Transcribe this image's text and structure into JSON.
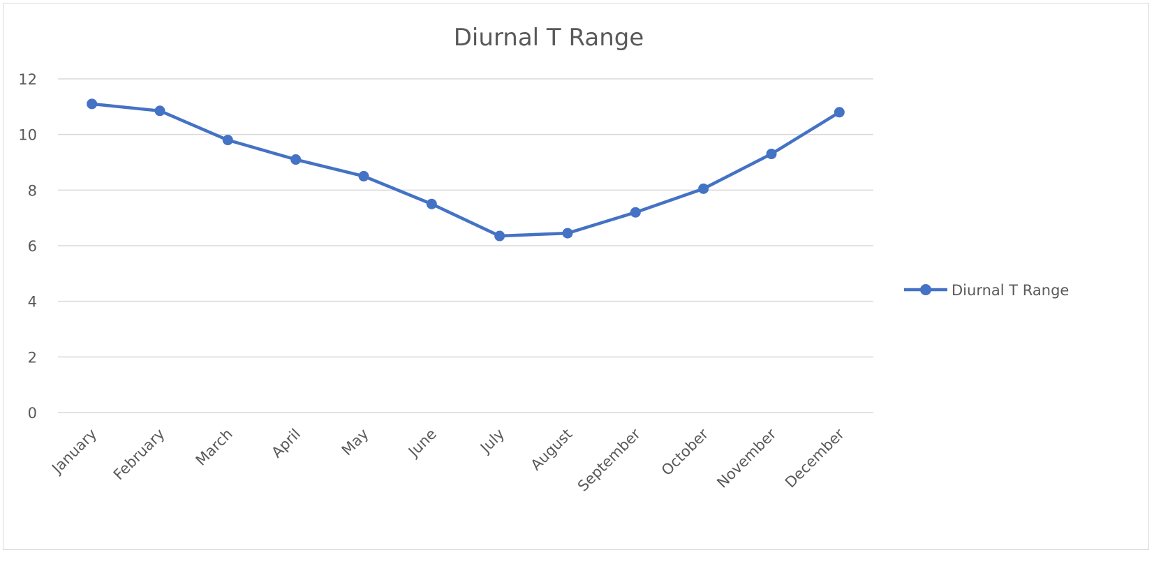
{
  "chart_data": {
    "type": "line",
    "title": "Diurnal T Range",
    "xlabel": "",
    "ylabel": "",
    "categories": [
      "January",
      "February",
      "March",
      "April",
      "May",
      "June",
      "July",
      "August",
      "September",
      "October",
      "November",
      "December"
    ],
    "series": [
      {
        "name": "Diurnal T Range",
        "values": [
          11.1,
          10.85,
          9.8,
          9.1,
          8.5,
          7.5,
          6.35,
          6.45,
          7.2,
          8.05,
          9.3,
          10.8
        ],
        "color": "#4472c4"
      }
    ],
    "ylim": [
      0,
      12
    ],
    "yticks": [
      0,
      2,
      4,
      6,
      8,
      10,
      12
    ],
    "grid": true,
    "legend": "right"
  }
}
